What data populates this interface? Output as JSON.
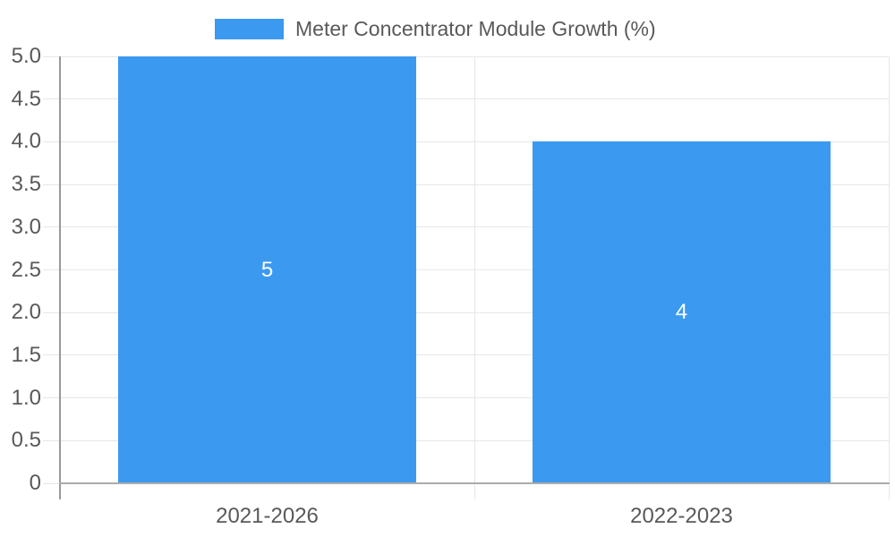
{
  "chart_data": {
    "type": "bar",
    "title": "Meter Concentrator Module Growth (%)",
    "categories": [
      "2021-2026",
      "2022-2023"
    ],
    "values": [
      5,
      4
    ],
    "value_labels": [
      "5",
      "4"
    ],
    "xlabel": "",
    "ylabel": "",
    "ylim": [
      0,
      5
    ],
    "ytick_step": 0.5,
    "ytick_labels": [
      "0",
      "0.5",
      "1.0",
      "1.5",
      "2.0",
      "2.5",
      "3.0",
      "3.5",
      "4.0",
      "4.5",
      "5.0"
    ],
    "grid": true,
    "legend_position": "top-center",
    "legend_entries": [
      "Meter Concentrator Module Growth (%)"
    ]
  },
  "colors": {
    "bar": "#3B99F0",
    "gridline": "#E7E7E7",
    "y_axis_line": "#999999",
    "x_axis_line": "#ABABAB",
    "tick_text": "#595959",
    "bar_value_text": "#FFFFFF"
  }
}
